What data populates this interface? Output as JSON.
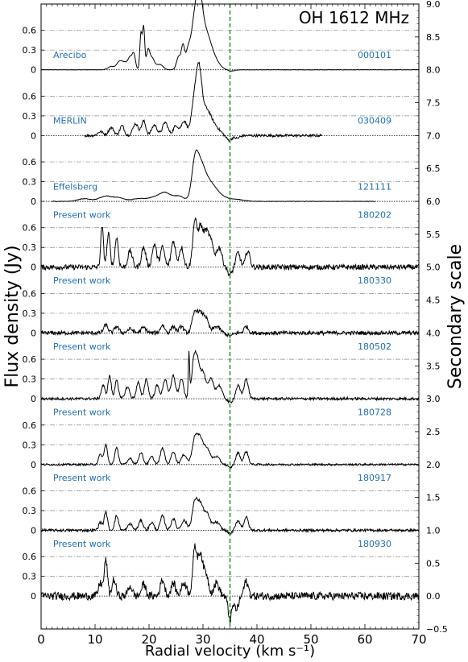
{
  "chart_data": {
    "type": "line",
    "title": "OH 1612 MHz",
    "xlabel": "Radial velocity (km s⁻¹)",
    "ylabel": "Flux density (Jy)",
    "ylabel_right": "Secondary scale",
    "xlim": [
      0,
      70
    ],
    "ylim_secondary": [
      -0.5,
      9.0
    ],
    "x_ticks": [
      0,
      10,
      20,
      30,
      40,
      50,
      60,
      70
    ],
    "x_tick_labels": [
      "0",
      "10",
      "20",
      "30",
      "40",
      "50",
      "60",
      "70"
    ],
    "left_tick_labels": [
      "0",
      "0.3",
      "0.6"
    ],
    "right_ticks": [
      -0.5,
      0.0,
      0.5,
      1.0,
      1.5,
      2.0,
      2.5,
      3.0,
      3.5,
      4.0,
      4.5,
      5.0,
      5.5,
      6.0,
      6.5,
      7.0,
      7.5,
      8.0,
      8.5,
      9.0
    ],
    "right_tick_labels": [
      "−0.5",
      "0.0",
      "0.5",
      "1.0",
      "1.5",
      "2.0",
      "2.5",
      "3.0",
      "3.5",
      "4.0",
      "4.5",
      "5.0",
      "5.5",
      "6.0",
      "6.5",
      "7.0",
      "7.5",
      "8.0",
      "8.5",
      "9.0"
    ],
    "vertical_line": {
      "x": 35.0,
      "color": "#2e8b2e",
      "style": "dashed"
    },
    "line_color": "#000000",
    "label_color": "#1f6fb0",
    "series": [
      {
        "name": "Arecibo",
        "date": "000101",
        "offset": 8.0,
        "range": [
          0,
          70
        ],
        "noise": 0.003,
        "peaks": [
          [
            13.0,
            0.05,
            0.6
          ],
          [
            14.5,
            0.12,
            0.5
          ],
          [
            15.5,
            0.1,
            0.5
          ],
          [
            16.5,
            0.18,
            0.4
          ],
          [
            17.2,
            0.22,
            0.3
          ],
          [
            18.5,
            0.55,
            0.2
          ],
          [
            19.0,
            0.65,
            0.2
          ],
          [
            19.8,
            0.25,
            0.3
          ],
          [
            20.5,
            0.18,
            0.5
          ],
          [
            22.0,
            0.08,
            0.6
          ],
          [
            25.5,
            0.2,
            0.4
          ],
          [
            26.3,
            0.35,
            0.3
          ],
          [
            27.2,
            0.25,
            0.4
          ],
          [
            28.3,
            0.6,
            0.6
          ],
          [
            29.3,
            0.9,
            0.6
          ],
          [
            30.5,
            0.5,
            0.9
          ],
          [
            32.0,
            0.15,
            1.0
          ]
        ],
        "dips": [
          [
            35.2,
            -0.02,
            0.6
          ]
        ]
      },
      {
        "name": "MERLIN",
        "date": "030409",
        "offset": 7.0,
        "range": [
          8,
          52
        ],
        "noise": 0.02,
        "peaks": [
          [
            11.0,
            0.06,
            0.5
          ],
          [
            13.0,
            0.12,
            0.5
          ],
          [
            15.0,
            0.15,
            0.4
          ],
          [
            17.5,
            0.18,
            0.5
          ],
          [
            19.0,
            0.22,
            0.4
          ],
          [
            21.0,
            0.16,
            0.5
          ],
          [
            23.0,
            0.2,
            0.5
          ],
          [
            25.0,
            0.15,
            0.5
          ],
          [
            26.5,
            0.22,
            0.5
          ],
          [
            28.5,
            0.55,
            0.6
          ],
          [
            29.3,
            0.75,
            0.5
          ],
          [
            30.5,
            0.35,
            0.8
          ],
          [
            32.0,
            0.15,
            1.0
          ]
        ],
        "dips": [
          [
            34.8,
            -0.07,
            0.5
          ],
          [
            36.3,
            -0.04,
            0.5
          ]
        ]
      },
      {
        "name": "Effelsberg",
        "date": "121111",
        "offset": 6.0,
        "range": [
          2,
          62
        ],
        "noise": 0.004,
        "peaks": [
          [
            8.0,
            0.04,
            1.2
          ],
          [
            12.0,
            0.08,
            1.2
          ],
          [
            14.5,
            0.05,
            1.0
          ],
          [
            18.0,
            0.04,
            1.2
          ],
          [
            21.0,
            0.06,
            1.2
          ],
          [
            23.0,
            0.12,
            1.0
          ],
          [
            25.5,
            0.08,
            1.0
          ],
          [
            28.5,
            0.5,
            0.6
          ],
          [
            29.5,
            0.4,
            0.8
          ],
          [
            30.8,
            0.25,
            1.2
          ],
          [
            32.5,
            0.1,
            1.4
          ],
          [
            36.0,
            0.03,
            1.5
          ]
        ],
        "dips": []
      },
      {
        "name": "Present work",
        "date": "180202",
        "offset": 5.0,
        "range": [
          0,
          70
        ],
        "noise": 0.04,
        "peaks": [
          [
            11.3,
            0.62,
            0.25
          ],
          [
            12.5,
            0.5,
            0.3
          ],
          [
            14.0,
            0.45,
            0.3
          ],
          [
            16.5,
            0.25,
            0.4
          ],
          [
            19.0,
            0.3,
            0.4
          ],
          [
            21.0,
            0.35,
            0.4
          ],
          [
            22.5,
            0.3,
            0.4
          ],
          [
            24.5,
            0.4,
            0.4
          ],
          [
            26.0,
            0.3,
            0.4
          ],
          [
            28.5,
            0.7,
            0.4
          ],
          [
            29.5,
            0.55,
            0.4
          ],
          [
            30.5,
            0.5,
            0.5
          ],
          [
            31.5,
            0.35,
            0.5
          ],
          [
            33.0,
            0.3,
            0.5
          ],
          [
            36.5,
            0.22,
            0.4
          ],
          [
            38.3,
            0.25,
            0.4
          ]
        ],
        "dips": [
          [
            35.0,
            -0.12,
            0.4
          ]
        ]
      },
      {
        "name": "Present work",
        "date": "180330",
        "offset": 4.0,
        "range": [
          0,
          70
        ],
        "noise": 0.03,
        "peaks": [
          [
            12.0,
            0.12,
            0.4
          ],
          [
            14.0,
            0.1,
            0.4
          ],
          [
            16.5,
            0.06,
            0.5
          ],
          [
            19.0,
            0.08,
            0.5
          ],
          [
            22.5,
            0.12,
            0.4
          ],
          [
            24.5,
            0.1,
            0.4
          ],
          [
            26.0,
            0.1,
            0.4
          ],
          [
            28.5,
            0.3,
            0.5
          ],
          [
            29.5,
            0.25,
            0.5
          ],
          [
            30.5,
            0.22,
            0.5
          ],
          [
            32.5,
            0.1,
            0.6
          ],
          [
            38.0,
            0.1,
            0.4
          ]
        ],
        "dips": [
          [
            35.0,
            -0.05,
            0.5
          ]
        ]
      },
      {
        "name": "Present work",
        "date": "180502",
        "offset": 3.0,
        "range": [
          0,
          70
        ],
        "noise": 0.02,
        "peaks": [
          [
            11.5,
            0.2,
            0.35
          ],
          [
            12.7,
            0.35,
            0.3
          ],
          [
            14.0,
            0.3,
            0.3
          ],
          [
            16.0,
            0.18,
            0.4
          ],
          [
            18.0,
            0.25,
            0.35
          ],
          [
            19.5,
            0.3,
            0.35
          ],
          [
            21.5,
            0.2,
            0.4
          ],
          [
            23.0,
            0.3,
            0.4
          ],
          [
            24.5,
            0.35,
            0.4
          ],
          [
            26.0,
            0.3,
            0.4
          ],
          [
            27.4,
            0.7,
            0.12
          ],
          [
            28.3,
            0.55,
            0.4
          ],
          [
            29.0,
            0.48,
            0.4
          ],
          [
            30.0,
            0.4,
            0.5
          ],
          [
            31.5,
            0.3,
            0.5
          ],
          [
            33.0,
            0.2,
            0.5
          ],
          [
            36.5,
            0.2,
            0.4
          ],
          [
            38.0,
            0.3,
            0.4
          ]
        ],
        "dips": [
          [
            35.0,
            -0.06,
            0.4
          ]
        ]
      },
      {
        "name": "Present work",
        "date": "180728",
        "offset": 2.0,
        "range": [
          0,
          70
        ],
        "noise": 0.015,
        "peaks": [
          [
            11.0,
            0.15,
            0.35
          ],
          [
            12.0,
            0.3,
            0.3
          ],
          [
            14.0,
            0.25,
            0.35
          ],
          [
            16.5,
            0.1,
            0.4
          ],
          [
            18.5,
            0.18,
            0.4
          ],
          [
            20.5,
            0.12,
            0.4
          ],
          [
            22.5,
            0.25,
            0.4
          ],
          [
            24.5,
            0.2,
            0.4
          ],
          [
            26.5,
            0.15,
            0.5
          ],
          [
            28.5,
            0.4,
            0.5
          ],
          [
            29.5,
            0.35,
            0.5
          ],
          [
            30.7,
            0.25,
            0.6
          ],
          [
            32.5,
            0.12,
            0.6
          ],
          [
            36.5,
            0.18,
            0.4
          ],
          [
            38.0,
            0.2,
            0.4
          ]
        ],
        "dips": [
          [
            35.0,
            -0.05,
            0.4
          ]
        ]
      },
      {
        "name": "Present work",
        "date": "180917",
        "offset": 1.0,
        "range": [
          0,
          70
        ],
        "noise": 0.02,
        "peaks": [
          [
            11.0,
            0.12,
            0.35
          ],
          [
            12.0,
            0.28,
            0.3
          ],
          [
            14.0,
            0.22,
            0.35
          ],
          [
            16.5,
            0.1,
            0.4
          ],
          [
            18.5,
            0.15,
            0.4
          ],
          [
            20.5,
            0.12,
            0.4
          ],
          [
            22.5,
            0.22,
            0.4
          ],
          [
            24.5,
            0.18,
            0.4
          ],
          [
            26.5,
            0.15,
            0.5
          ],
          [
            28.5,
            0.42,
            0.5
          ],
          [
            29.5,
            0.35,
            0.5
          ],
          [
            30.7,
            0.25,
            0.6
          ],
          [
            32.5,
            0.12,
            0.6
          ],
          [
            36.5,
            0.15,
            0.4
          ],
          [
            38.0,
            0.2,
            0.4
          ]
        ],
        "dips": [
          [
            35.0,
            -0.05,
            0.4
          ]
        ]
      },
      {
        "name": "Present work",
        "date": "180930",
        "offset": 0.0,
        "range": [
          0,
          70
        ],
        "noise": 0.06,
        "peaks": [
          [
            11.0,
            0.2,
            0.35
          ],
          [
            12.0,
            0.55,
            0.3
          ],
          [
            13.5,
            0.25,
            0.35
          ],
          [
            16.5,
            0.15,
            0.4
          ],
          [
            19.0,
            0.18,
            0.4
          ],
          [
            22.5,
            0.25,
            0.4
          ],
          [
            24.5,
            0.2,
            0.4
          ],
          [
            26.5,
            0.2,
            0.5
          ],
          [
            28.5,
            0.72,
            0.4
          ],
          [
            29.5,
            0.6,
            0.4
          ],
          [
            30.5,
            0.35,
            0.5
          ],
          [
            32.5,
            0.2,
            0.5
          ],
          [
            38.0,
            0.22,
            0.4
          ]
        ],
        "dips": [
          [
            35.0,
            -0.35,
            0.35
          ],
          [
            36.2,
            -0.2,
            0.4
          ]
        ]
      }
    ]
  }
}
